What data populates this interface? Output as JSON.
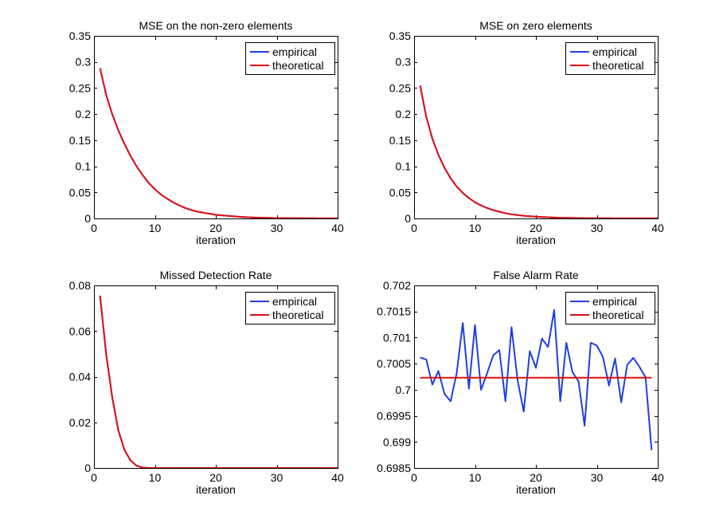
{
  "chart_data": [
    {
      "type": "line",
      "title": "MSE on the non-zero elements",
      "xlabel": "iteration",
      "ylabel": "",
      "xlim": [
        0,
        40
      ],
      "ylim": [
        0,
        0.35
      ],
      "xticks": [
        0,
        10,
        20,
        30,
        40
      ],
      "xtick_labels": [
        "0",
        "10",
        "20",
        "30",
        "40"
      ],
      "yticks": [
        0,
        0.05,
        0.1,
        0.15,
        0.2,
        0.25,
        0.3,
        0.35
      ],
      "ytick_labels": [
        "0",
        "0.05",
        "0.1",
        "0.15",
        "0.2",
        "0.25",
        "0.3",
        "0.35"
      ],
      "legend_position": "top-right",
      "colors": {
        "empirical": "#1f3fe0",
        "theoretical": "#e01010"
      },
      "x": [
        1,
        2,
        3,
        4,
        5,
        6,
        7,
        8,
        9,
        10,
        11,
        12,
        13,
        14,
        15,
        16,
        17,
        18,
        19,
        20,
        21,
        22,
        23,
        24,
        25,
        26,
        27,
        28,
        29,
        30,
        31,
        32,
        33,
        34,
        35,
        36,
        37,
        38,
        39,
        40
      ],
      "series": [
        {
          "name": "empirical",
          "values": [
            0.288,
            0.237,
            0.2,
            0.169,
            0.143,
            0.12,
            0.1,
            0.083,
            0.068,
            0.056,
            0.046,
            0.038,
            0.031,
            0.025,
            0.02,
            0.016,
            0.013,
            0.011,
            0.009,
            0.007,
            0.006,
            0.005,
            0.004,
            0.003,
            0.0025,
            0.002,
            0.0016,
            0.0013,
            0.001,
            0.0008,
            0.0007,
            0.0006,
            0.0005,
            0.0004,
            0.0003,
            0.0003,
            0.0002,
            0.0002,
            0.0001,
            0.0001
          ]
        },
        {
          "name": "theoretical",
          "values": [
            0.288,
            0.237,
            0.2,
            0.169,
            0.143,
            0.12,
            0.1,
            0.083,
            0.068,
            0.056,
            0.046,
            0.038,
            0.031,
            0.025,
            0.02,
            0.016,
            0.013,
            0.011,
            0.009,
            0.007,
            0.006,
            0.005,
            0.004,
            0.003,
            0.0025,
            0.002,
            0.0016,
            0.0013,
            0.001,
            0.0008,
            0.0007,
            0.0006,
            0.0005,
            0.0004,
            0.0003,
            0.0003,
            0.0002,
            0.0002,
            0.0001,
            0.0001
          ]
        }
      ]
    },
    {
      "type": "line",
      "title": "MSE on zero elements",
      "xlabel": "iteration",
      "ylabel": "",
      "xlim": [
        0,
        40
      ],
      "ylim": [
        0,
        0.35
      ],
      "xticks": [
        0,
        10,
        20,
        30,
        40
      ],
      "xtick_labels": [
        "0",
        "10",
        "20",
        "30",
        "40"
      ],
      "yticks": [
        0,
        0.05,
        0.1,
        0.15,
        0.2,
        0.25,
        0.3,
        0.35
      ],
      "ytick_labels": [
        "0",
        "0.05",
        "0.1",
        "0.15",
        "0.2",
        "0.25",
        "0.3",
        "0.35"
      ],
      "legend_position": "top-right",
      "colors": {
        "empirical": "#1f3fe0",
        "theoretical": "#e01010"
      },
      "x": [
        1,
        2,
        3,
        4,
        5,
        6,
        7,
        8,
        9,
        10,
        11,
        12,
        13,
        14,
        15,
        16,
        17,
        18,
        19,
        20,
        21,
        22,
        23,
        24,
        25,
        26,
        27,
        28,
        29,
        30,
        31,
        32,
        33,
        34,
        35,
        36,
        37,
        38,
        39,
        40
      ],
      "series": [
        {
          "name": "empirical",
          "values": [
            0.255,
            0.195,
            0.153,
            0.122,
            0.097,
            0.077,
            0.061,
            0.049,
            0.039,
            0.031,
            0.025,
            0.02,
            0.016,
            0.013,
            0.01,
            0.008,
            0.0065,
            0.0052,
            0.0042,
            0.0034,
            0.0027,
            0.0022,
            0.0018,
            0.0014,
            0.0011,
            0.0009,
            0.0007,
            0.0006,
            0.0005,
            0.0004,
            0.0003,
            0.0003,
            0.0002,
            0.0002,
            0.0001,
            0.0001,
            0.0001,
            0.0001,
            0.0001,
            0.0001
          ]
        },
        {
          "name": "theoretical",
          "values": [
            0.255,
            0.195,
            0.153,
            0.122,
            0.097,
            0.077,
            0.061,
            0.049,
            0.039,
            0.031,
            0.025,
            0.02,
            0.016,
            0.013,
            0.01,
            0.008,
            0.0065,
            0.0052,
            0.0042,
            0.0034,
            0.0027,
            0.0022,
            0.0018,
            0.0014,
            0.0011,
            0.0009,
            0.0007,
            0.0006,
            0.0005,
            0.0004,
            0.0003,
            0.0003,
            0.0002,
            0.0002,
            0.0001,
            0.0001,
            0.0001,
            0.0001,
            0.0001,
            0.0001
          ]
        }
      ]
    },
    {
      "type": "line",
      "title": "Missed Detection Rate",
      "xlabel": "iteration",
      "ylabel": "",
      "xlim": [
        0,
        40
      ],
      "ylim": [
        0,
        0.08
      ],
      "xticks": [
        0,
        10,
        20,
        30,
        40
      ],
      "xtick_labels": [
        "0",
        "10",
        "20",
        "30",
        "40"
      ],
      "yticks": [
        0,
        0.02,
        0.04,
        0.06,
        0.08
      ],
      "ytick_labels": [
        "0",
        "0.02",
        "0.04",
        "0.06",
        "0.08"
      ],
      "legend_position": "top-right",
      "colors": {
        "empirical": "#1f3fe0",
        "theoretical": "#e01010"
      },
      "x": [
        1,
        2,
        3,
        4,
        5,
        6,
        7,
        8,
        9,
        10,
        11,
        12,
        13,
        14,
        15,
        16,
        17,
        18,
        19,
        20,
        21,
        22,
        23,
        24,
        25,
        26,
        27,
        28,
        29,
        30,
        31,
        32,
        33,
        34,
        35,
        36,
        37,
        38,
        39,
        40
      ],
      "series": [
        {
          "name": "empirical",
          "values": [
            0.0755,
            0.05,
            0.031,
            0.0165,
            0.008,
            0.0033,
            0.001,
            0.0002,
            0,
            0,
            0,
            0,
            0,
            0,
            0,
            0,
            0,
            0,
            0,
            0,
            0,
            0,
            0,
            0,
            0,
            0,
            0,
            0,
            0,
            0,
            0,
            0,
            0,
            0,
            0,
            0,
            0,
            0,
            0,
            0
          ]
        },
        {
          "name": "theoretical",
          "values": [
            0.0755,
            0.05,
            0.031,
            0.0165,
            0.008,
            0.0033,
            0.001,
            0.0002,
            0,
            0,
            0,
            0,
            0,
            0,
            0,
            0,
            0,
            0,
            0,
            0,
            0,
            0,
            0,
            0,
            0,
            0,
            0,
            0,
            0,
            0,
            0,
            0,
            0,
            0,
            0,
            0,
            0,
            0,
            0,
            0
          ]
        }
      ]
    },
    {
      "type": "line",
      "title": "False Alarm Rate",
      "xlabel": "iteration",
      "ylabel": "",
      "xlim": [
        0,
        40
      ],
      "ylim": [
        0.6985,
        0.702
      ],
      "xticks": [
        0,
        10,
        20,
        30,
        40
      ],
      "xtick_labels": [
        "0",
        "10",
        "20",
        "30",
        "40"
      ],
      "yticks": [
        0.6985,
        0.699,
        0.6995,
        0.7,
        0.7005,
        0.701,
        0.7015,
        0.702
      ],
      "ytick_labels": [
        "0.6985",
        "0.699",
        "0.6995",
        "0.7",
        "0.7005",
        "0.701",
        "0.7015",
        "0.702"
      ],
      "legend_position": "top-right",
      "colors": {
        "empirical": "#1f3fe0",
        "theoretical": "#e01010"
      },
      "x": [
        1,
        2,
        3,
        4,
        5,
        6,
        7,
        8,
        9,
        10,
        11,
        12,
        13,
        14,
        15,
        16,
        17,
        18,
        19,
        20,
        21,
        22,
        23,
        24,
        25,
        26,
        27,
        28,
        29,
        30,
        31,
        32,
        33,
        34,
        35,
        36,
        37,
        38,
        39
      ],
      "series": [
        {
          "name": "empirical",
          "values": [
            0.70062,
            0.70058,
            0.7001,
            0.70036,
            0.69992,
            0.69978,
            0.70032,
            0.70128,
            0.70002,
            0.70124,
            0.7,
            0.70032,
            0.70066,
            0.70076,
            0.69978,
            0.7012,
            0.70018,
            0.69958,
            0.70074,
            0.70042,
            0.70098,
            0.70082,
            0.70153,
            0.69978,
            0.7009,
            0.70034,
            0.70016,
            0.69931,
            0.7009,
            0.70085,
            0.70063,
            0.70008,
            0.7006,
            0.69976,
            0.70048,
            0.70061,
            0.70044,
            0.70024,
            0.69884
          ]
        },
        {
          "name": "theoretical",
          "values": [
            0.70023,
            0.70023,
            0.70023,
            0.70023,
            0.70023,
            0.70023,
            0.70023,
            0.70023,
            0.70023,
            0.70023,
            0.70023,
            0.70023,
            0.70023,
            0.70023,
            0.70023,
            0.70023,
            0.70023,
            0.70023,
            0.70023,
            0.70023,
            0.70023,
            0.70023,
            0.70023,
            0.70023,
            0.70023,
            0.70023,
            0.70023,
            0.70023,
            0.70023,
            0.70023,
            0.70023,
            0.70023,
            0.70023,
            0.70023,
            0.70023,
            0.70023,
            0.70023,
            0.70023,
            0.70023
          ]
        }
      ]
    }
  ]
}
